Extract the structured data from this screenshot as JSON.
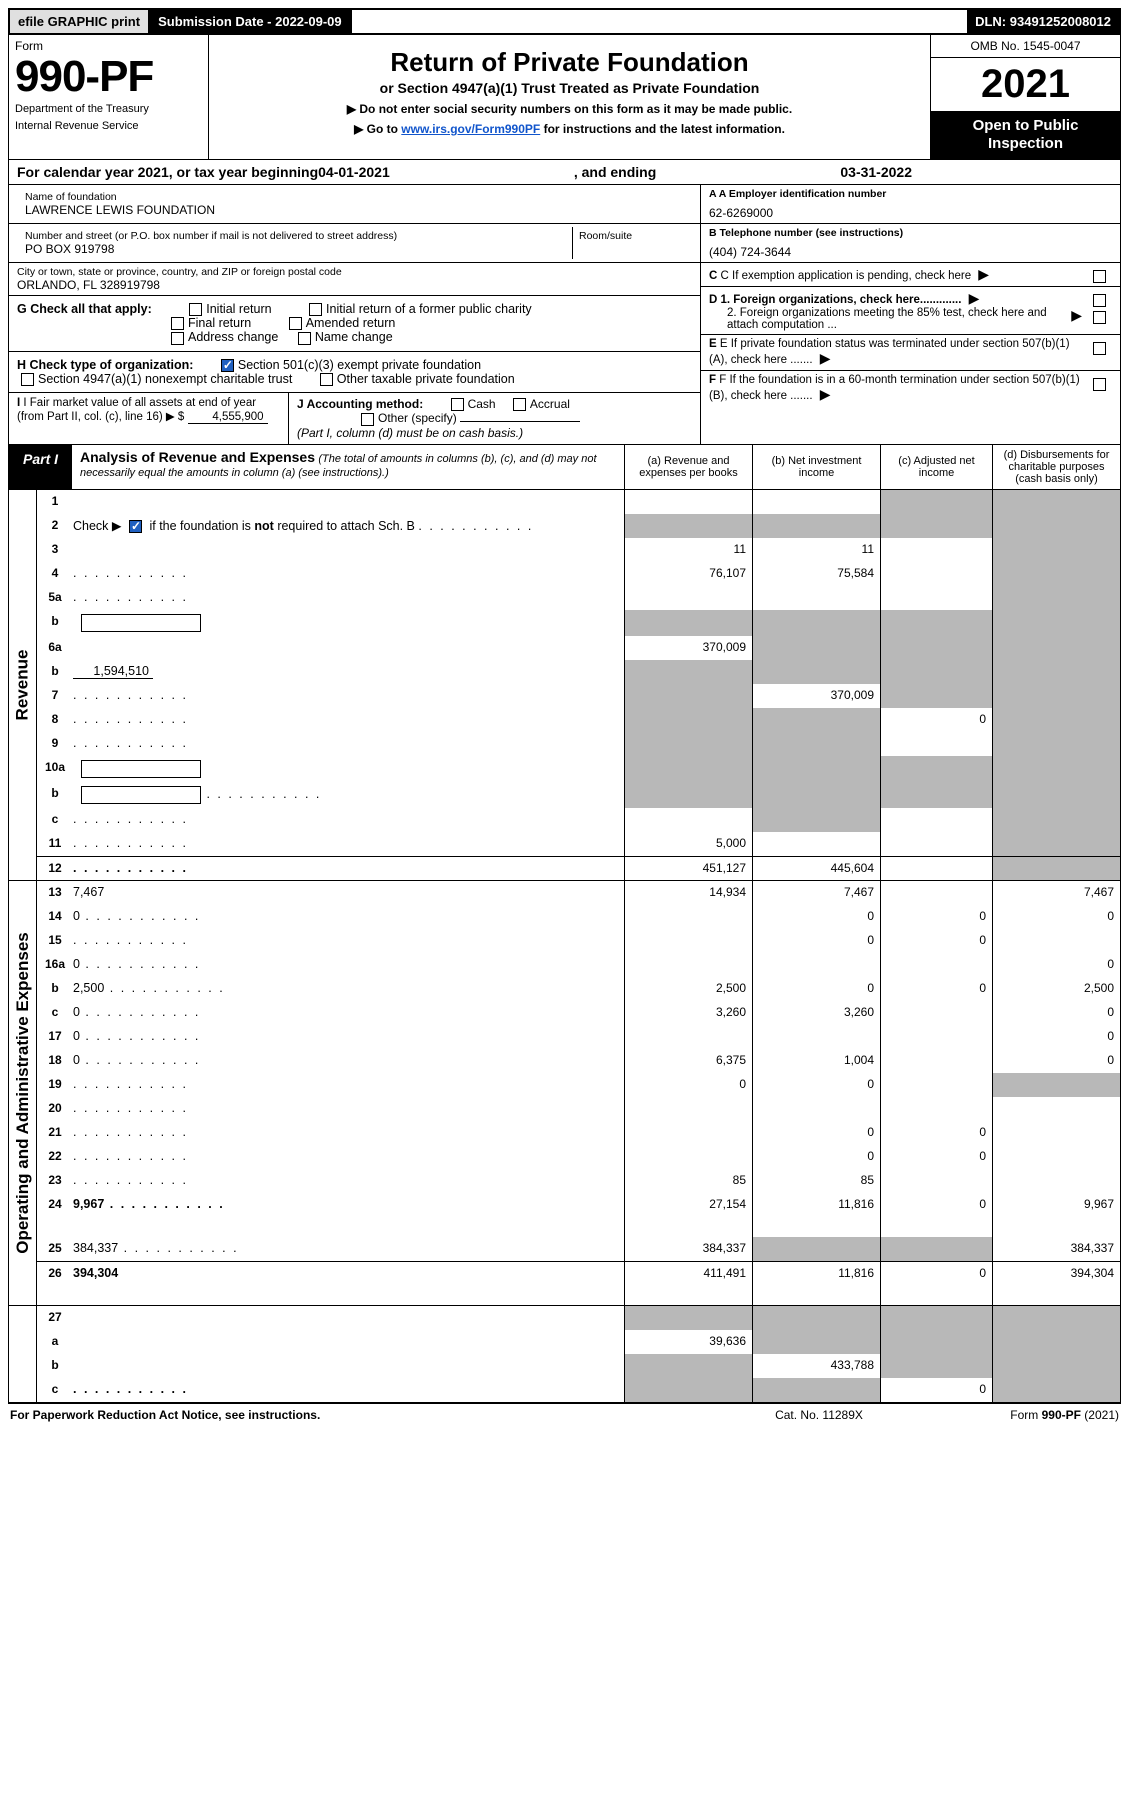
{
  "topbar": {
    "efile": "efile GRAPHIC print",
    "submission_label": "Submission Date - ",
    "submission_date": "2022-09-09",
    "dln_label": "DLN: ",
    "dln": "93491252008012"
  },
  "header": {
    "form_label": "Form",
    "form_number": "990-PF",
    "dept1": "Department of the Treasury",
    "dept2": "Internal Revenue Service",
    "title": "Return of Private Foundation",
    "subtitle": "or Section 4947(a)(1) Trust Treated as Private Foundation",
    "note1": "▶ Do not enter social security numbers on this form as it may be made public.",
    "note2_pre": "▶ Go to ",
    "note2_link": "www.irs.gov/Form990PF",
    "note2_post": " for instructions and the latest information.",
    "omb": "OMB No. 1545-0047",
    "year": "2021",
    "inspect1": "Open to Public",
    "inspect2": "Inspection"
  },
  "calyear": {
    "pre": "For calendar year 2021, or tax year beginning ",
    "begin": "04-01-2021",
    "mid": " , and ending ",
    "end": "03-31-2022"
  },
  "info": {
    "name_label": "Name of foundation",
    "name": "LAWRENCE LEWIS FOUNDATION",
    "addr_label": "Number and street (or P.O. box number if mail is not delivered to street address)",
    "addr": "PO BOX 919798",
    "room_label": "Room/suite",
    "city_label": "City or town, state or province, country, and ZIP or foreign postal code",
    "city": "ORLANDO, FL  328919798",
    "a_label": "A Employer identification number",
    "a_val": "62-6269000",
    "b_label": "B Telephone number (see instructions)",
    "b_val": "(404) 724-3644",
    "c_label": "C If exemption application is pending, check here",
    "d1": "D 1. Foreign organizations, check here.............",
    "d2": "2. Foreign organizations meeting the 85% test, check here and attach computation ...",
    "e": "E  If private foundation status was terminated under section 507(b)(1)(A), check here .......",
    "f": "F  If the foundation is in a 60-month termination under section 507(b)(1)(B), check here .......",
    "g_label": "G Check all that apply:",
    "g_opts": [
      "Initial return",
      "Initial return of a former public charity",
      "Final return",
      "Amended return",
      "Address change",
      "Name change"
    ],
    "h_label": "H Check type of organization:",
    "h_opt1": "Section 501(c)(3) exempt private foundation",
    "h_opt2": "Section 4947(a)(1) nonexempt charitable trust",
    "h_opt3": "Other taxable private foundation",
    "i_label": "I Fair market value of all assets at end of year (from Part II, col. (c), line 16)",
    "i_val": "4,555,900",
    "j_label": "J Accounting method:",
    "j_cash": "Cash",
    "j_accrual": "Accrual",
    "j_other": "Other (specify)",
    "j_note": "(Part I, column (d) must be on cash basis.)"
  },
  "part1": {
    "label": "Part I",
    "title": "Analysis of Revenue and Expenses",
    "title_note": " (The total of amounts in columns (b), (c), and (d) may not necessarily equal the amounts in column (a) (see instructions).)",
    "col_a": "(a)  Revenue and expenses per books",
    "col_b": "(b)  Net investment income",
    "col_c": "(c)  Adjusted net income",
    "col_d": "(d)  Disbursements for charitable purposes (cash basis only)"
  },
  "side": {
    "revenue": "Revenue",
    "expenses": "Operating and Administrative Expenses"
  },
  "rows": [
    {
      "n": "1",
      "d": null,
      "a": "",
      "b": null,
      "c": null,
      "shade_c": true,
      "shade_d": true
    },
    {
      "n": "2",
      "d": null,
      "dots": true,
      "a": null,
      "b": null,
      "c": null,
      "shade_a": true,
      "shade_b": true,
      "shade_c": true,
      "shade_d": true
    },
    {
      "n": "3",
      "d": null,
      "a": "11",
      "b": "11",
      "c": "",
      "shade_d": true
    },
    {
      "n": "4",
      "d": null,
      "dots": true,
      "a": "76,107",
      "b": "75,584",
      "c": "",
      "shade_d": true
    },
    {
      "n": "5a",
      "d": null,
      "dots": true,
      "a": "",
      "b": "",
      "c": "",
      "shade_d": true
    },
    {
      "n": "b",
      "d": null,
      "inline_box": true,
      "a": null,
      "b": null,
      "c": null,
      "shade_a": true,
      "shade_b": true,
      "shade_c": true,
      "shade_d": true
    },
    {
      "n": "6a",
      "d": null,
      "a": "370,009",
      "b": null,
      "c": null,
      "shade_b": true,
      "shade_c": true,
      "shade_d": true
    },
    {
      "n": "b",
      "d": null,
      "inline_val": "1,594,510",
      "a": null,
      "b": null,
      "c": null,
      "shade_a": true,
      "shade_b": true,
      "shade_c": true,
      "shade_d": true
    },
    {
      "n": "7",
      "d": null,
      "dots": true,
      "a": null,
      "b": "370,009",
      "c": null,
      "shade_a": true,
      "shade_c": true,
      "shade_d": true
    },
    {
      "n": "8",
      "d": null,
      "dots": true,
      "a": null,
      "b": null,
      "c": "0",
      "shade_a": true,
      "shade_b": true,
      "shade_d": true
    },
    {
      "n": "9",
      "d": null,
      "dots": true,
      "a": null,
      "b": null,
      "c": "",
      "shade_a": true,
      "shade_b": true,
      "shade_d": true
    },
    {
      "n": "10a",
      "d": null,
      "inline_box": true,
      "a": null,
      "b": null,
      "c": null,
      "shade_a": true,
      "shade_b": true,
      "shade_c": true,
      "shade_d": true
    },
    {
      "n": "b",
      "d": null,
      "dots": true,
      "inline_box": true,
      "a": null,
      "b": null,
      "c": null,
      "shade_a": true,
      "shade_b": true,
      "shade_c": true,
      "shade_d": true
    },
    {
      "n": "c",
      "d": null,
      "dots": true,
      "a": "",
      "b": null,
      "c": "",
      "shade_b": true,
      "shade_d": true
    },
    {
      "n": "11",
      "d": null,
      "dots": true,
      "a": "5,000",
      "b": "",
      "c": "",
      "shade_d": true
    },
    {
      "n": "12",
      "d": null,
      "dots": true,
      "bold": true,
      "a": "451,127",
      "b": "445,604",
      "c": "",
      "shade_d": true,
      "rule": true
    }
  ],
  "exp_rows": [
    {
      "n": "13",
      "d": "7,467",
      "a": "14,934",
      "b": "7,467",
      "c": ""
    },
    {
      "n": "14",
      "d": "0",
      "dots": true,
      "a": "",
      "b": "0",
      "c": "0"
    },
    {
      "n": "15",
      "d": "",
      "dots": true,
      "a": "",
      "b": "0",
      "c": "0"
    },
    {
      "n": "16a",
      "d": "0",
      "dots": true,
      "a": "",
      "b": "",
      "c": ""
    },
    {
      "n": "b",
      "d": "2,500",
      "dots": true,
      "a": "2,500",
      "b": "0",
      "c": "0"
    },
    {
      "n": "c",
      "d": "0",
      "dots": true,
      "a": "3,260",
      "b": "3,260",
      "c": ""
    },
    {
      "n": "17",
      "d": "0",
      "dots": true,
      "a": "",
      "b": "",
      "c": ""
    },
    {
      "n": "18",
      "d": "0",
      "dots": true,
      "a": "6,375",
      "b": "1,004",
      "c": ""
    },
    {
      "n": "19",
      "d": null,
      "dots": true,
      "a": "0",
      "b": "0",
      "c": "",
      "shade_d": true
    },
    {
      "n": "20",
      "d": "",
      "dots": true,
      "a": "",
      "b": "",
      "c": ""
    },
    {
      "n": "21",
      "d": "",
      "dots": true,
      "a": "",
      "b": "0",
      "c": "0"
    },
    {
      "n": "22",
      "d": "",
      "dots": true,
      "a": "",
      "b": "0",
      "c": "0"
    },
    {
      "n": "23",
      "d": "",
      "dots": true,
      "a": "85",
      "b": "85",
      "c": ""
    },
    {
      "n": "24",
      "d": "9,967",
      "dots": true,
      "bold": true,
      "a": "27,154",
      "b": "11,816",
      "c": "0",
      "tall": true
    },
    {
      "n": "25",
      "d": "384,337",
      "dots": true,
      "a": "384,337",
      "b": null,
      "c": null,
      "shade_b": true,
      "shade_c": true
    },
    {
      "n": "26",
      "d": "394,304",
      "bold": true,
      "a": "411,491",
      "b": "11,816",
      "c": "0",
      "tall": true,
      "rule": true
    }
  ],
  "bottom_rows": [
    {
      "n": "27",
      "d": null,
      "a": null,
      "b": null,
      "c": null,
      "shade_a": true,
      "shade_b": true,
      "shade_c": true,
      "shade_d": true
    },
    {
      "n": "a",
      "d": null,
      "bold": true,
      "a": "39,636",
      "b": null,
      "c": null,
      "shade_b": true,
      "shade_c": true,
      "shade_d": true
    },
    {
      "n": "b",
      "d": null,
      "bold": true,
      "a": null,
      "b": "433,788",
      "c": null,
      "shade_a": true,
      "shade_c": true,
      "shade_d": true
    },
    {
      "n": "c",
      "d": null,
      "dots": true,
      "bold": true,
      "a": null,
      "b": null,
      "c": "0",
      "shade_a": true,
      "shade_b": true,
      "shade_d": true
    }
  ],
  "footer": {
    "left": "For Paperwork Reduction Act Notice, see instructions.",
    "mid": "Cat. No. 11289X",
    "right": "Form 990-PF (2021)"
  }
}
